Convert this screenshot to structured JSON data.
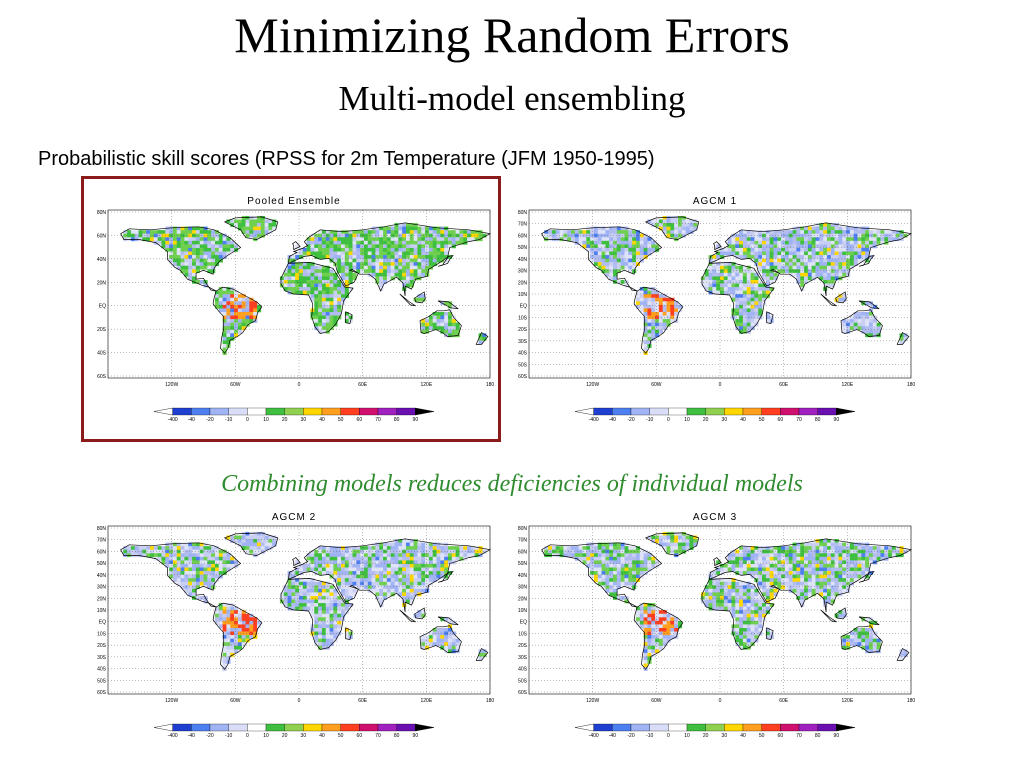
{
  "slide": {
    "title": "Minimizing Random Errors",
    "subtitle": "Multi-model ensembling",
    "caption": "Probabilistic skill scores (RPSS for 2m Temperature (JFM 1950-1995)",
    "tagline": "Combining models reduces deficiencies of individual models"
  },
  "colors": {
    "highlight_border": "#8b1a1a",
    "tagline": "#2e8b2e"
  },
  "longitude_labels": [
    "120W",
    "60W",
    "0",
    "60E",
    "120E",
    "180"
  ],
  "colorbar": {
    "labels": [
      "-400",
      "-40",
      "-20",
      "-10",
      "0",
      "10",
      "20",
      "30",
      "40",
      "50",
      "60",
      "70",
      "80",
      "90"
    ],
    "colors": [
      "#ffffff",
      "#1f3fd0",
      "#4d7ff0",
      "#9fb3f5",
      "#d9ddf7",
      "#ffffff",
      "#3fbf3f",
      "#8fd04f",
      "#ffd700",
      "#ff9f1f",
      "#ff3f1f",
      "#d0106f",
      "#a020c0",
      "#6a0fb0",
      "#000000"
    ]
  },
  "panels": [
    {
      "id": "pooled",
      "title": "Pooled Ensemble",
      "latitude_labels": [
        "80N",
        "60N",
        "40N",
        "20N",
        "EQ",
        "20S",
        "40S",
        "60S"
      ],
      "highlighted": true
    },
    {
      "id": "agcm1",
      "title": "AGCM 1",
      "latitude_labels": [
        "80N",
        "70N",
        "60N",
        "50N",
        "40N",
        "30N",
        "20N",
        "10N",
        "EQ",
        "10S",
        "20S",
        "30S",
        "40S",
        "50S",
        "60S"
      ],
      "highlighted": false
    },
    {
      "id": "agcm2",
      "title": "AGCM 2",
      "latitude_labels": [
        "80N",
        "70N",
        "60N",
        "50N",
        "40N",
        "30N",
        "20N",
        "10N",
        "EQ",
        "10S",
        "20S",
        "30S",
        "40S",
        "50S",
        "60S"
      ],
      "highlighted": false
    },
    {
      "id": "agcm3",
      "title": "AGCM 3",
      "latitude_labels": [
        "80N",
        "70N",
        "60N",
        "50N",
        "40N",
        "30N",
        "20N",
        "10N",
        "EQ",
        "10S",
        "20S",
        "30S",
        "40S",
        "50S",
        "60S"
      ],
      "highlighted": false
    }
  ]
}
